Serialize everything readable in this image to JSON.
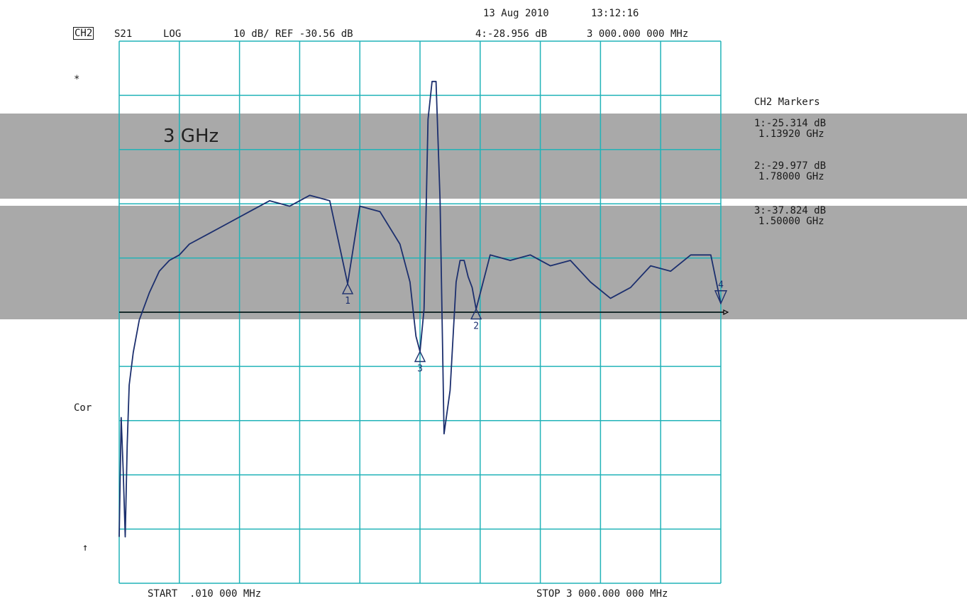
{
  "header": {
    "date": "13 Aug 2010",
    "time": "13:12:16",
    "channel": "CH2",
    "param": "S21",
    "format": "LOG",
    "scale": "10 dB/ REF -30.56 dB",
    "active_marker": "4:-28.956 dB",
    "active_marker_freq": "3 000.000 000 MHz"
  },
  "left_annotations": {
    "star": "*",
    "cor": "Cor",
    "arrow": "↑"
  },
  "overlay_label": "3 GHz",
  "footer": {
    "start": "START  .010 000 MHz",
    "stop": "STOP 3 000.000 000 MHz"
  },
  "markers_panel": {
    "title": "CH2 Markers",
    "items": [
      {
        "value": "1:-25.314 dB",
        "freq": "1.13920 GHz"
      },
      {
        "value": "2:-29.977 dB",
        "freq": "1.78000 GHz"
      },
      {
        "value": "3:-37.824 dB",
        "freq": "1.50000 GHz"
      }
    ]
  },
  "colors": {
    "grid": "#21b3b8",
    "trace": "#1c2f6e",
    "reference_line": "#000000",
    "band": "#a9a9a9"
  },
  "chart_data": {
    "type": "line",
    "title": "",
    "xlabel": "",
    "ylabel": "",
    "x_unit": "GHz",
    "y_unit": "dB",
    "xlim": [
      1e-05,
      3.0
    ],
    "ylim": [
      -80.56,
      19.44
    ],
    "reference_level": -30.56,
    "grid": true,
    "series": [
      {
        "x": [
          1e-05,
          0.01,
          0.02,
          0.03,
          0.04,
          0.05,
          0.07,
          0.1,
          0.15,
          0.2,
          0.25,
          0.3,
          0.35,
          0.45,
          0.55,
          0.65,
          0.75,
          0.85,
          0.95,
          1.05,
          1.1392,
          1.2,
          1.3,
          1.4,
          1.45,
          1.48,
          1.5,
          1.52,
          1.54,
          1.56,
          1.58,
          1.6,
          1.62,
          1.65,
          1.68,
          1.7,
          1.72,
          1.74,
          1.76,
          1.78,
          1.85,
          1.95,
          2.05,
          2.15,
          2.25,
          2.35,
          2.45,
          2.55,
          2.65,
          2.75,
          2.85,
          2.95,
          3.0
        ],
        "y": [
          -72,
          -50,
          -60,
          -72,
          -55,
          -44,
          -38,
          -32,
          -27,
          -23,
          -21,
          -20,
          -18,
          -16,
          -14,
          -12,
          -10,
          -11,
          -9,
          -10,
          -25.31,
          -11,
          -12,
          -18,
          -25,
          -35,
          -37.82,
          -30,
          5,
          12,
          12,
          -10,
          -53,
          -45,
          -25,
          -21,
          -21,
          -24,
          -26,
          -29.98,
          -20,
          -21,
          -20,
          -22,
          -21,
          -25,
          -28,
          -26,
          -22,
          -23,
          -20,
          -20,
          -28.96
        ]
      }
    ],
    "markers": [
      {
        "id": "1",
        "x": 1.1392,
        "y": -25.314
      },
      {
        "id": "2",
        "x": 1.78,
        "y": -29.977
      },
      {
        "id": "3",
        "x": 1.5,
        "y": -37.824
      },
      {
        "id": "4",
        "x": 3.0,
        "y": -28.956
      }
    ]
  }
}
